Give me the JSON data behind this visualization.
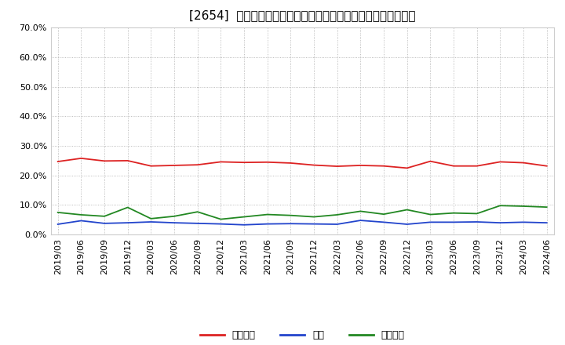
{
  "title": "[2654]  売上債権、在庫、買入債務の総資産に対する比率の推移",
  "x_labels": [
    "2019/03",
    "2019/06",
    "2019/09",
    "2019/12",
    "2020/03",
    "2020/06",
    "2020/09",
    "2020/12",
    "2021/03",
    "2021/06",
    "2021/09",
    "2021/12",
    "2022/03",
    "2022/06",
    "2022/09",
    "2022/12",
    "2023/03",
    "2023/06",
    "2023/09",
    "2023/12",
    "2024/03",
    "2024/06"
  ],
  "urikake": [
    0.247,
    0.258,
    0.249,
    0.25,
    0.232,
    0.234,
    0.236,
    0.246,
    0.244,
    0.245,
    0.242,
    0.235,
    0.231,
    0.234,
    0.232,
    0.225,
    0.248,
    0.232,
    0.232,
    0.246,
    0.243,
    0.232
  ],
  "zaiko": [
    0.035,
    0.047,
    0.038,
    0.04,
    0.043,
    0.04,
    0.038,
    0.036,
    0.033,
    0.036,
    0.037,
    0.036,
    0.035,
    0.048,
    0.042,
    0.035,
    0.042,
    0.042,
    0.043,
    0.04,
    0.042,
    0.04
  ],
  "kaiire": [
    0.075,
    0.067,
    0.062,
    0.092,
    0.054,
    0.062,
    0.077,
    0.052,
    0.06,
    0.068,
    0.065,
    0.06,
    0.067,
    0.079,
    0.069,
    0.084,
    0.068,
    0.073,
    0.071,
    0.098,
    0.096,
    0.093
  ],
  "urikake_color": "#dd2222",
  "zaiko_color": "#2244cc",
  "kaiire_color": "#228822",
  "bg_color": "#ffffff",
  "grid_color": "#aaaaaa",
  "ylim": [
    0.0,
    0.7
  ],
  "yticks": [
    0.0,
    0.1,
    0.2,
    0.3,
    0.4,
    0.5,
    0.6,
    0.7
  ],
  "legend_labels": [
    "売上債権",
    "在庫",
    "買入債務"
  ],
  "title_fontsize": 11,
  "tick_fontsize": 8,
  "legend_fontsize": 9
}
